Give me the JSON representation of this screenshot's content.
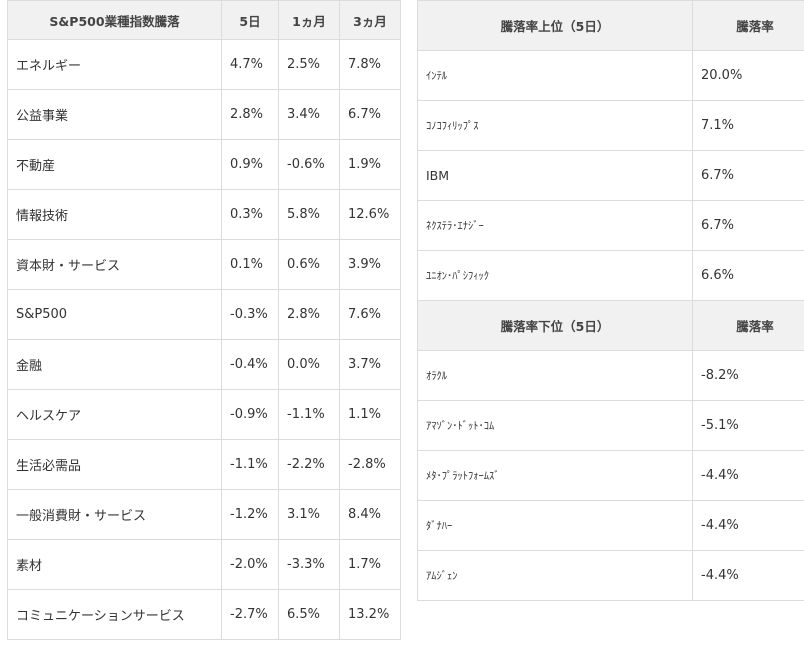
{
  "sector_table": {
    "headers": [
      "S&P500業種指数騰落",
      "5日",
      "1ヵ月",
      "3ヵ月"
    ],
    "rows": [
      [
        "エネルギー",
        "4.7%",
        "2.5%",
        "7.8%"
      ],
      [
        "公益事業",
        "2.8%",
        "3.4%",
        "6.7%"
      ],
      [
        "不動産",
        "0.9%",
        "-0.6%",
        "1.9%"
      ],
      [
        "情報技術",
        "0.3%",
        "5.8%",
        "12.6%"
      ],
      [
        "資本財・サービス",
        "0.1%",
        "0.6%",
        "3.9%"
      ],
      [
        "S&P500",
        "-0.3%",
        "2.8%",
        "7.6%"
      ],
      [
        "金融",
        "-0.4%",
        "0.0%",
        "3.7%"
      ],
      [
        "ヘルスケア",
        "-0.9%",
        "-1.1%",
        "1.1%"
      ],
      [
        "生活必需品",
        "-1.1%",
        "-2.2%",
        "-2.8%"
      ],
      [
        "一般消費財・サービス",
        "-1.2%",
        "3.1%",
        "8.4%"
      ],
      [
        "素材",
        "-2.0%",
        "-3.3%",
        "1.7%"
      ],
      [
        "コミュニケーションサービス",
        "-2.7%",
        "6.5%",
        "13.2%"
      ]
    ]
  },
  "gainers": {
    "headers": [
      "騰落率上位（5日）",
      "騰落率"
    ],
    "rows": [
      [
        "ｲﾝﾃﾙ",
        "20.0%"
      ],
      [
        "ｺﾉｺﾌｨﾘｯﾌﾟｽ",
        "7.1%"
      ],
      [
        "IBM",
        "6.7%"
      ],
      [
        "ﾈｸｽﾃﾗ･ｴﾅｼﾞｰ",
        "6.7%"
      ],
      [
        "ﾕﾆｵﾝ･ﾊﾟｼﾌｨｯｸ",
        "6.6%"
      ]
    ]
  },
  "losers": {
    "headers": [
      "騰落率下位（5日）",
      "騰落率"
    ],
    "rows": [
      [
        "ｵﾗｸﾙ",
        "-8.2%"
      ],
      [
        "ｱﾏｿﾞﾝ･ﾄﾞｯﾄ･ｺﾑ",
        "-5.1%"
      ],
      [
        "ﾒﾀ･ﾌﾟﾗｯﾄﾌｫｰﾑｽﾞ",
        "-4.4%"
      ],
      [
        "ﾀﾞﾅﾊｰ",
        "-4.4%"
      ],
      [
        "ｱﾑｼﾞｪﾝ",
        "-4.4%"
      ]
    ]
  }
}
